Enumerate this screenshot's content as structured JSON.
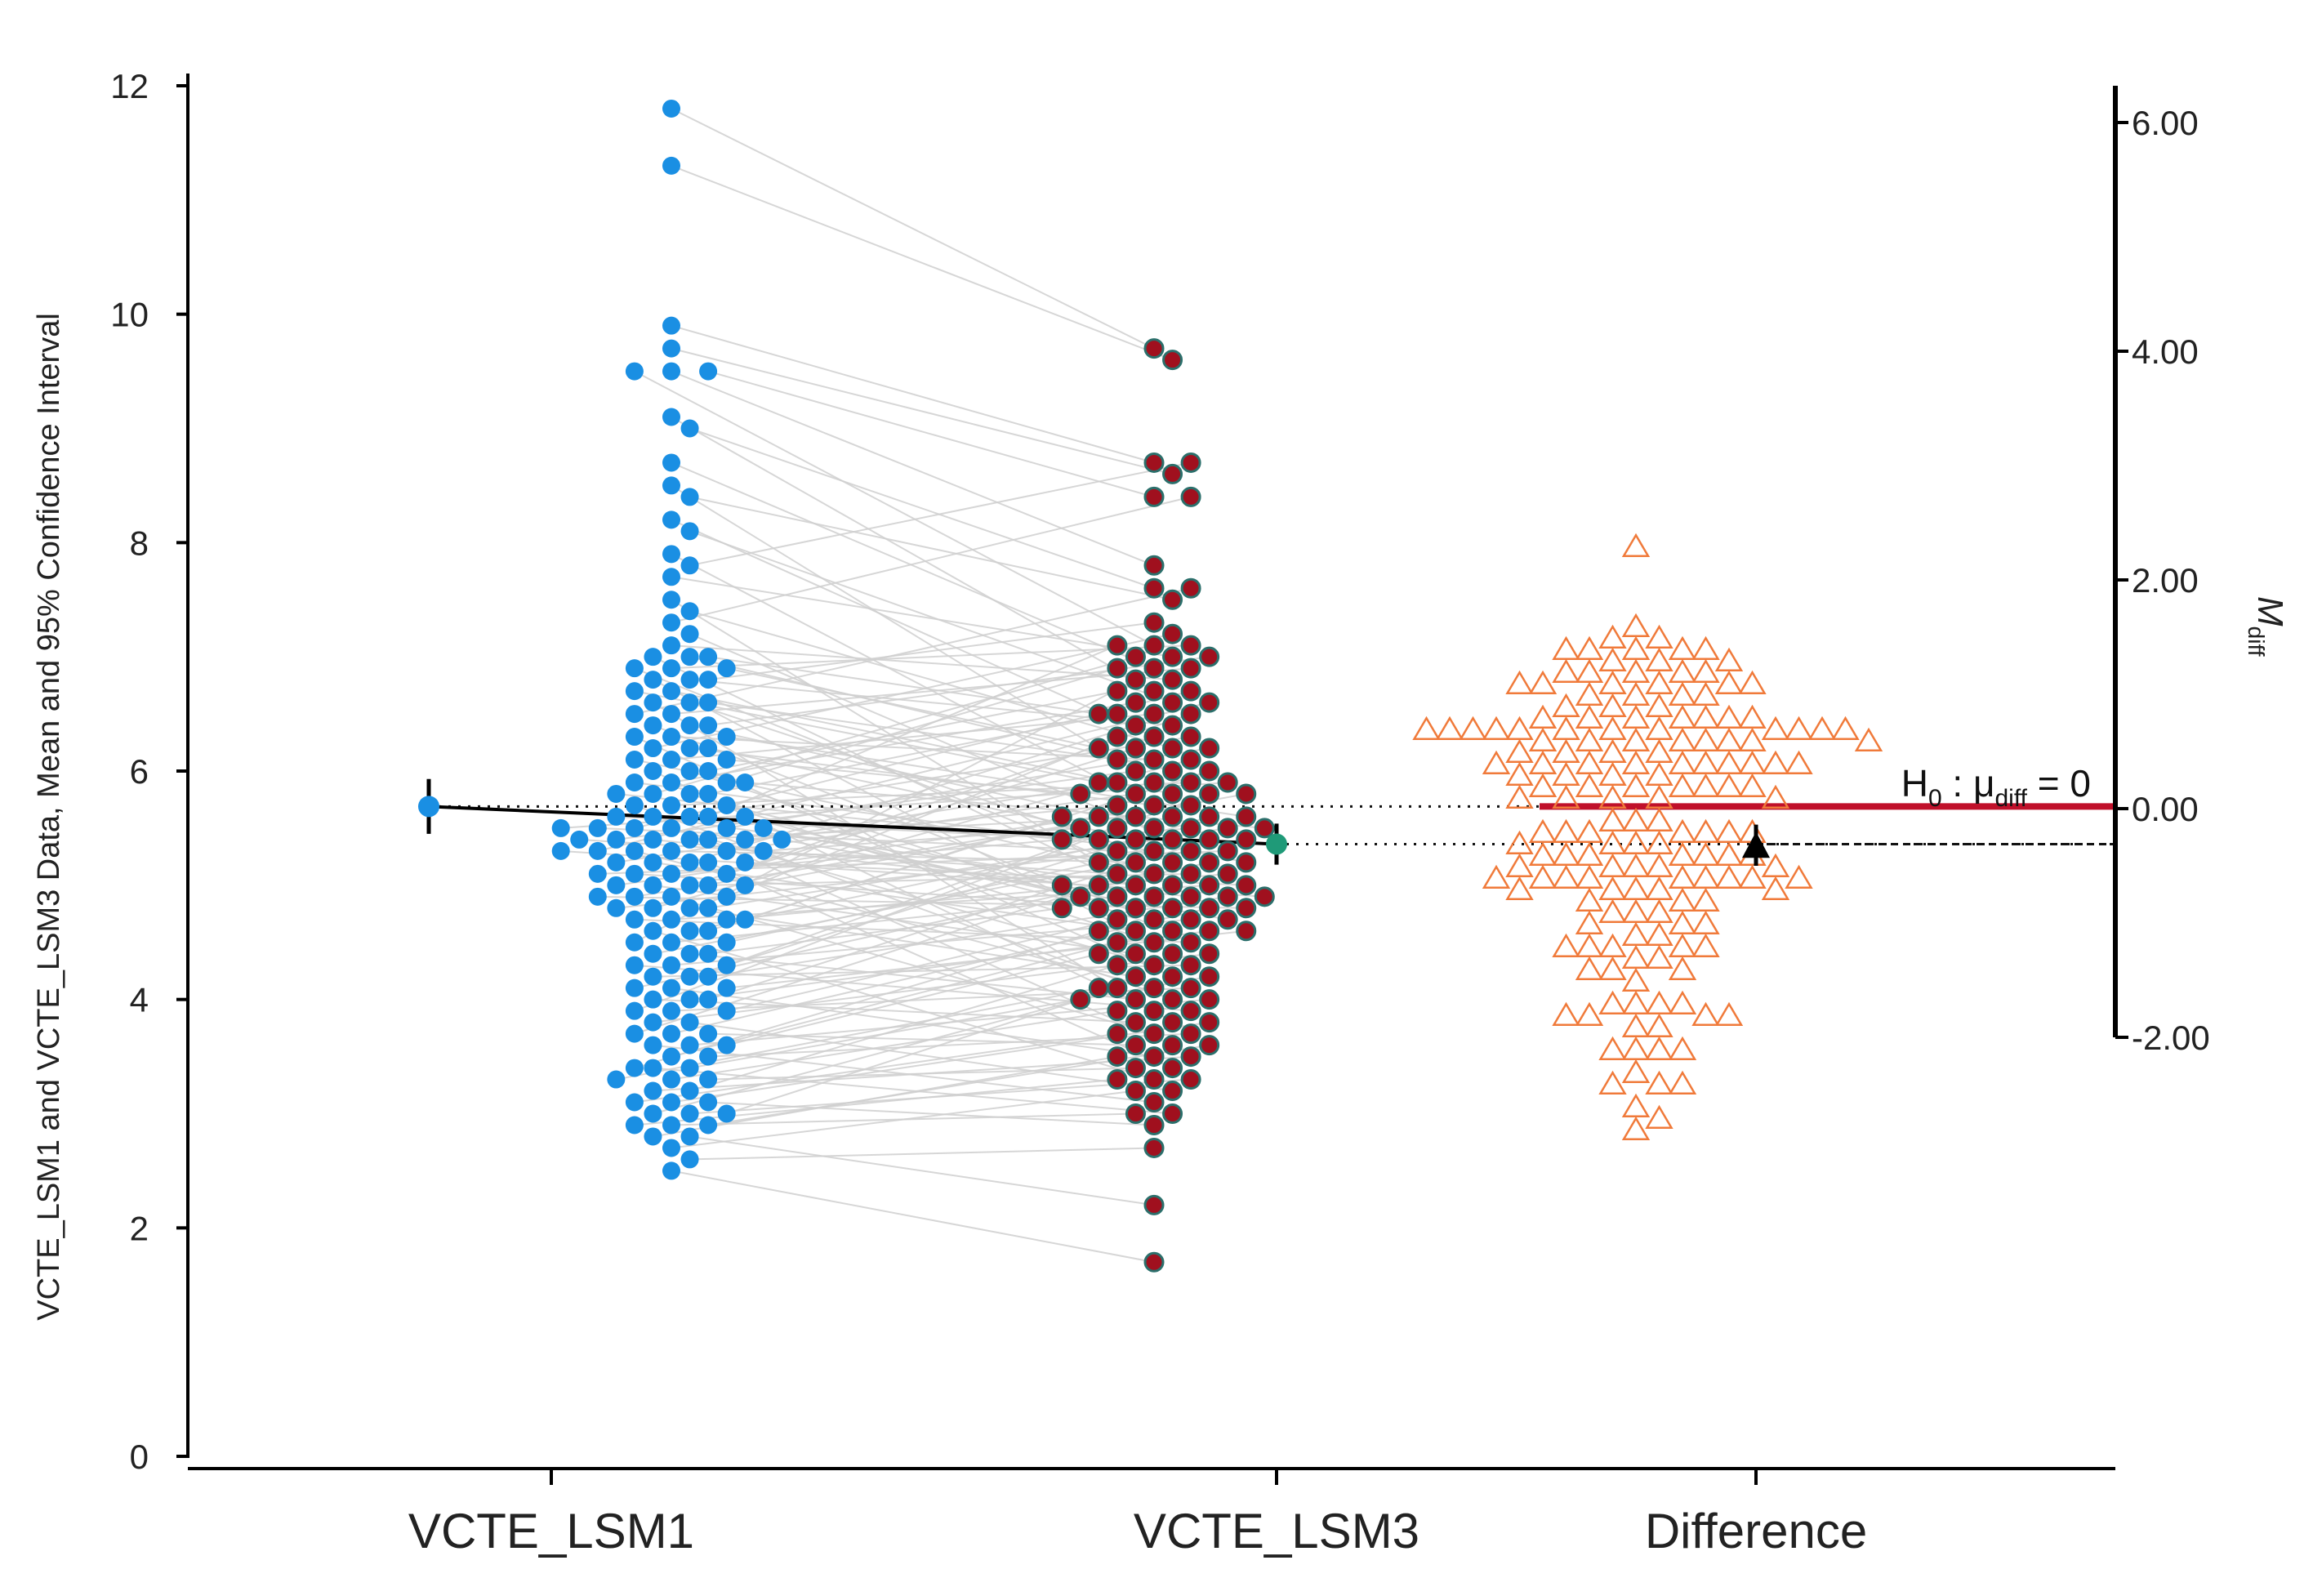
{
  "chart_data": {
    "type": "scatter",
    "title": "",
    "ylabel": "VCTE_LSM1 and VCTE_LSM3 Data, Mean and 95% Confidence Interval",
    "y2label": "M",
    "y2label_sub": "diff",
    "ylim": [
      0,
      12
    ],
    "y2lim": [
      -2,
      6
    ],
    "yticks": [
      0,
      2,
      4,
      6,
      8,
      10,
      12
    ],
    "y2ticks": [
      "6.00",
      "4.00",
      "2.00",
      "0.00",
      "-2.00"
    ],
    "y2tick_values": [
      6,
      4,
      2,
      0,
      -2
    ],
    "categories": [
      "VCTE_LSM1",
      "VCTE_LSM3",
      "Difference"
    ],
    "h0_label": {
      "main": "H",
      "sub0": "0",
      "mid": " : μ",
      "sub1": "diff",
      "end": " = 0"
    },
    "series": [
      {
        "name": "VCTE_LSM1",
        "color": "#1a8fe3",
        "mean": 5.69,
        "ci": [
          5.45,
          5.93
        ]
      },
      {
        "name": "VCTE_LSM3",
        "color": "#a0101e",
        "stroke": "#2b6f6b",
        "mean": 5.36,
        "ci": [
          5.18,
          5.54
        ],
        "mean_color": "#1f9a78"
      },
      {
        "name": "Difference",
        "color": "#f07a3a",
        "mean": -0.33,
        "ci": [
          -0.5,
          -0.14
        ]
      }
    ],
    "colors": {
      "pair_line": "#d0d0d0",
      "h0_line": "#c0102a",
      "axis": "#000000"
    },
    "pairs": [
      [
        11.8,
        9.7
      ],
      [
        11.3,
        9.6
      ],
      [
        9.9,
        8.7
      ],
      [
        9.7,
        8.6
      ],
      [
        9.5,
        7.8
      ],
      [
        9.5,
        8.4
      ],
      [
        9.5,
        7.1
      ],
      [
        9.1,
        6.7
      ],
      [
        9.0,
        7.6
      ],
      [
        8.7,
        6.9
      ],
      [
        8.5,
        5.9
      ],
      [
        8.4,
        7.5
      ],
      [
        8.2,
        6.3
      ],
      [
        8.1,
        6.6
      ],
      [
        7.9,
        5.6
      ],
      [
        7.7,
        7.0
      ],
      [
        7.5,
        4.8
      ],
      [
        7.4,
        6.2
      ],
      [
        7.2,
        5.4
      ],
      [
        7.1,
        6.8
      ],
      [
        7.0,
        6.0
      ],
      [
        7.0,
        4.9
      ],
      [
        6.9,
        7.1
      ],
      [
        6.9,
        5.0
      ],
      [
        6.8,
        6.4
      ],
      [
        6.8,
        4.4
      ],
      [
        6.7,
        5.8
      ],
      [
        6.6,
        5.2
      ],
      [
        6.6,
        3.8
      ],
      [
        6.5,
        6.9
      ],
      [
        6.4,
        5.5
      ],
      [
        6.4,
        4.7
      ],
      [
        6.3,
        6.1
      ],
      [
        6.3,
        4.2
      ],
      [
        6.2,
        5.7
      ],
      [
        6.1,
        6.5
      ],
      [
        6.1,
        5.1
      ],
      [
        6.0,
        4.6
      ],
      [
        6.0,
        3.9
      ],
      [
        5.9,
        6.6
      ],
      [
        5.9,
        5.3
      ],
      [
        5.8,
        4.5
      ],
      [
        5.8,
        7.0
      ],
      [
        5.7,
        5.9
      ],
      [
        5.7,
        4.0
      ],
      [
        5.6,
        6.3
      ],
      [
        5.6,
        5.0
      ],
      [
        5.5,
        4.3
      ],
      [
        5.5,
        6.7
      ],
      [
        5.4,
        5.6
      ],
      [
        5.4,
        4.9
      ],
      [
        5.4,
        3.6
      ],
      [
        5.4,
        6.0
      ],
      [
        5.3,
        5.2
      ],
      [
        5.3,
        4.1
      ],
      [
        5.3,
        5.8
      ],
      [
        5.2,
        6.4
      ],
      [
        5.2,
        4.6
      ],
      [
        5.2,
        3.4
      ],
      [
        5.1,
        5.5
      ],
      [
        5.1,
        4.8
      ],
      [
        5.0,
        6.2
      ],
      [
        5.0,
        4.4
      ],
      [
        5.0,
        5.1
      ],
      [
        4.9,
        3.7
      ],
      [
        4.9,
        5.7
      ],
      [
        4.8,
        4.2
      ],
      [
        4.8,
        6.1
      ],
      [
        4.7,
        5.0
      ],
      [
        4.7,
        4.5
      ],
      [
        4.6,
        5.4
      ],
      [
        4.6,
        3.3
      ],
      [
        4.5,
        4.9
      ],
      [
        4.5,
        6.8
      ],
      [
        4.4,
        4.0
      ],
      [
        4.4,
        5.3
      ],
      [
        4.3,
        4.7
      ],
      [
        4.3,
        3.9
      ],
      [
        4.2,
        5.6
      ],
      [
        4.2,
        4.3
      ],
      [
        4.1,
        3.5
      ],
      [
        4.1,
        5.2
      ],
      [
        4.0,
        4.6
      ],
      [
        4.0,
        3.8
      ],
      [
        3.9,
        4.1
      ],
      [
        3.9,
        5.5
      ],
      [
        3.8,
        3.2
      ],
      [
        3.8,
        4.4
      ],
      [
        3.7,
        4.8
      ],
      [
        3.7,
        3.6
      ],
      [
        3.6,
        4.0
      ],
      [
        3.6,
        3.1
      ],
      [
        3.5,
        4.5
      ],
      [
        3.5,
        3.7
      ],
      [
        3.4,
        4.2
      ],
      [
        3.4,
        3.0
      ],
      [
        3.3,
        3.9
      ],
      [
        3.3,
        3.4
      ],
      [
        3.2,
        4.3
      ],
      [
        3.2,
        3.5
      ],
      [
        3.1,
        3.8
      ],
      [
        3.1,
        2.9
      ],
      [
        3.0,
        3.3
      ],
      [
        3.0,
        4.0
      ],
      [
        2.9,
        3.0
      ],
      [
        2.9,
        3.6
      ],
      [
        2.8,
        2.2
      ],
      [
        2.7,
        3.2
      ],
      [
        2.6,
        2.7
      ],
      [
        2.5,
        1.7
      ],
      [
        6.5,
        7.6
      ],
      [
        6.2,
        7.2
      ],
      [
        5.9,
        6.9
      ],
      [
        5.6,
        7.1
      ],
      [
        5.3,
        6.6
      ],
      [
        5.1,
        6.5
      ],
      [
        4.9,
        6.3
      ],
      [
        4.6,
        6.0
      ],
      [
        4.3,
        5.8
      ],
      [
        4.0,
        5.4
      ],
      [
        3.7,
        5.0
      ],
      [
        3.4,
        4.6
      ],
      [
        3.0,
        4.1
      ],
      [
        2.8,
        3.5
      ],
      [
        7.8,
        8.7
      ],
      [
        7.3,
        8.4
      ],
      [
        6.8,
        7.3
      ],
      [
        6.4,
        7.0
      ],
      [
        6.0,
        6.7
      ],
      [
        5.8,
        6.5
      ],
      [
        5.5,
        6.2
      ],
      [
        5.2,
        5.9
      ],
      [
        4.8,
        5.5
      ],
      [
        4.5,
        5.2
      ],
      [
        4.2,
        4.9
      ],
      [
        3.9,
        4.7
      ],
      [
        3.6,
        4.4
      ],
      [
        3.3,
        4.1
      ],
      [
        3.1,
        3.7
      ],
      [
        2.9,
        3.3
      ],
      [
        5.4,
        5.7
      ],
      [
        5.4,
        5.1
      ],
      [
        5.4,
        4.7
      ],
      [
        5.5,
        5.3
      ],
      [
        5.5,
        4.9
      ],
      [
        5.6,
        5.4
      ],
      [
        5.6,
        4.8
      ],
      [
        5.3,
        5.5
      ],
      [
        5.3,
        4.9
      ],
      [
        5.2,
        5.0
      ],
      [
        5.1,
        5.3
      ],
      [
        5.0,
        5.6
      ],
      [
        4.9,
        4.8
      ],
      [
        4.8,
        5.4
      ],
      [
        4.7,
        5.1
      ],
      [
        6.3,
        5.6
      ],
      [
        6.1,
        5.8
      ],
      [
        5.9,
        5.5
      ],
      [
        5.7,
        5.0
      ],
      [
        6.6,
        6.1
      ],
      [
        7.0,
        6.5
      ],
      [
        6.9,
        6.2
      ],
      [
        6.7,
        5.9
      ],
      [
        6.2,
        5.2
      ],
      [
        5.8,
        5.4
      ],
      [
        5.5,
        5.9
      ],
      [
        5.0,
        5.8
      ],
      [
        4.7,
        5.6
      ],
      [
        4.4,
        4.8
      ],
      [
        4.1,
        4.6
      ]
    ]
  }
}
